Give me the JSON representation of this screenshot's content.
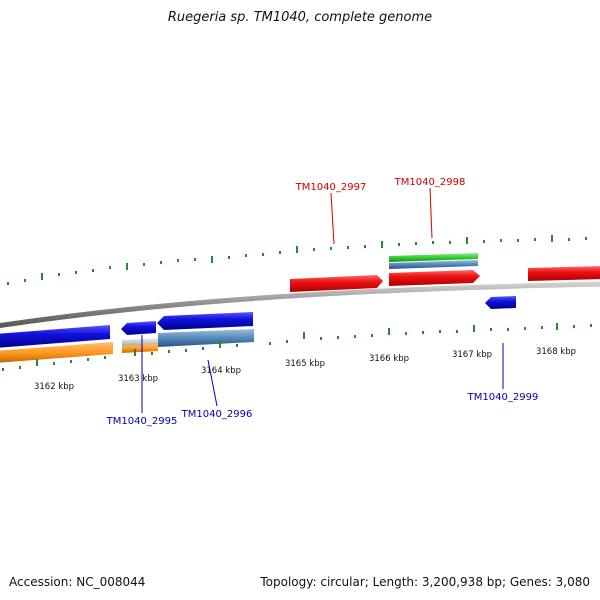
{
  "title": "Ruegeria sp. TM1040, complete genome",
  "footer": {
    "accession": "Accession: NC_008044",
    "summary": "Topology: circular; Length: 3,200,938 bp; Genes: 3,080"
  },
  "colors": {
    "backbone": "#8a8a8a",
    "tick": "#2a8a2a",
    "forward_gene": "#ee1111",
    "reverse_gene": "#1111dd",
    "orange_feature": "#ff9922",
    "steel_feature": "#5588bb",
    "green_feature": "#33cc33",
    "grey_feature": "#c8c8c8",
    "label_top": "#cc0000",
    "label_bottom": "#0000aa"
  },
  "position_labels": [
    "3162 kbp",
    "3163 kbp",
    "3164 kbp",
    "3165 kbp",
    "3166 kbp",
    "3167 kbp",
    "3168 kbp"
  ],
  "gene_labels": [
    {
      "name": "TM1040_2995",
      "strand": "reverse"
    },
    {
      "name": "TM1040_2996",
      "strand": "reverse"
    },
    {
      "name": "TM1040_2997",
      "strand": "forward"
    },
    {
      "name": "TM1040_2998",
      "strand": "forward"
    },
    {
      "name": "TM1040_2999",
      "strand": "reverse"
    }
  ]
}
